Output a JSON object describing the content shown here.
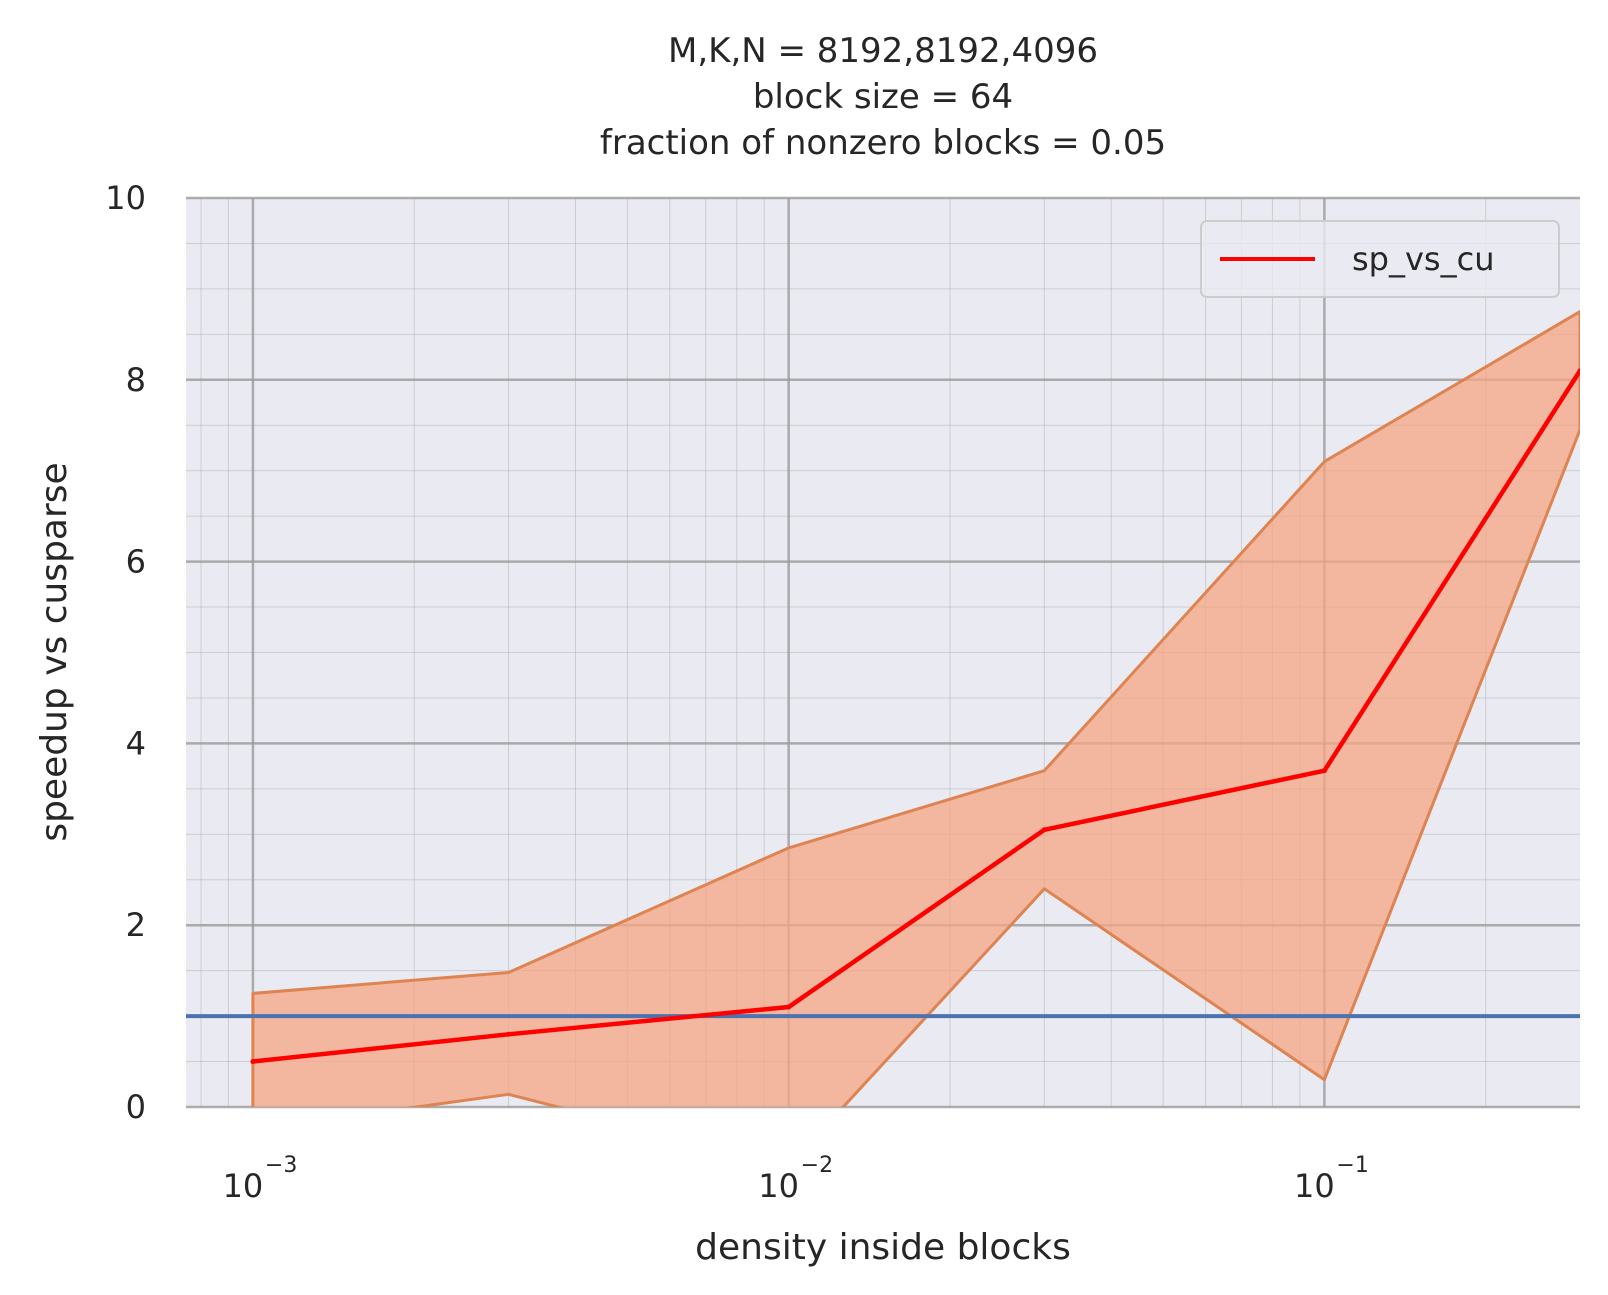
{
  "chart_data": {
    "type": "line",
    "title_lines": [
      "M,K,N = 8192,8192,4096",
      "block size = 64",
      "fraction of nonzero blocks = 0.05"
    ],
    "xlabel": "density inside blocks",
    "ylabel": "speedup vs cusparse",
    "x_scale": "log",
    "xlim": [
      0.00075,
      0.3
    ],
    "ylim": [
      0,
      10
    ],
    "y_ticks": [
      0,
      2,
      4,
      6,
      8,
      10
    ],
    "x_ticks": [
      {
        "value": 0.001,
        "base": "10",
        "exponent": "−3"
      },
      {
        "value": 0.01,
        "base": "10",
        "exponent": "−2"
      },
      {
        "value": 0.1,
        "base": "10",
        "exponent": "−1"
      }
    ],
    "grid": true,
    "minor_grid": true,
    "legend_position": "upper-right",
    "series": [
      {
        "name": "sp_vs_cu",
        "color": "#ff0000",
        "x": [
          0.001,
          0.003,
          0.01,
          0.03,
          0.1,
          0.3
        ],
        "y": [
          0.5,
          0.8,
          1.1,
          3.05,
          3.7,
          8.1
        ]
      }
    ],
    "band": {
      "color": "#f4a582",
      "edge_color": "#dd8452",
      "x": [
        0.001,
        0.003,
        0.01,
        0.03,
        0.1,
        0.3
      ],
      "upper": [
        1.25,
        1.48,
        2.85,
        3.7,
        7.1,
        8.75
      ],
      "lower": [
        -0.25,
        0.14,
        -0.65,
        2.4,
        0.3,
        7.45
      ]
    },
    "reference_line": {
      "y": 1.0,
      "color": "#4c72b0"
    }
  }
}
